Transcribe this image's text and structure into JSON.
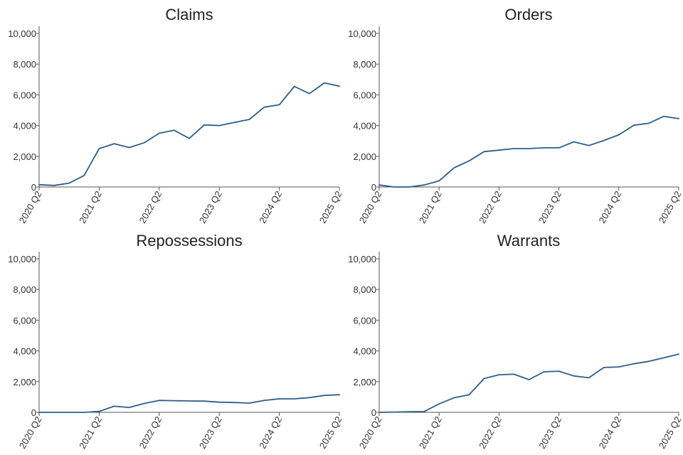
{
  "chart_data": [
    {
      "type": "line",
      "title": "Claims",
      "x": [
        "2020 Q2",
        "2020 Q3",
        "2020 Q4",
        "2021 Q1",
        "2021 Q2",
        "2021 Q3",
        "2021 Q4",
        "2022 Q1",
        "2022 Q2",
        "2022 Q3",
        "2022 Q4",
        "2023 Q1",
        "2023 Q2",
        "2023 Q3",
        "2023 Q4",
        "2024 Q1",
        "2024 Q2",
        "2024 Q3",
        "2024 Q4",
        "2025 Q1",
        "2025 Q2"
      ],
      "values": [
        150,
        100,
        250,
        750,
        2500,
        2820,
        2570,
        2880,
        3500,
        3690,
        3160,
        4040,
        4000,
        4200,
        4400,
        5200,
        5350,
        6550,
        6080,
        6780,
        6560
      ],
      "xticks": [
        "2020 Q2",
        "2021 Q2",
        "2022 Q2",
        "2023 Q2",
        "2024 Q2",
        "2025 Q2"
      ],
      "yticks": [
        "0",
        "2,000",
        "4,000",
        "6,000",
        "8,000",
        "10,000"
      ],
      "ylim": [
        0,
        10000
      ],
      "color": "#2f5d8a"
    },
    {
      "type": "line",
      "title": "Orders",
      "x": [
        "2020 Q2",
        "2020 Q3",
        "2020 Q4",
        "2021 Q1",
        "2021 Q2",
        "2021 Q3",
        "2021 Q4",
        "2022 Q1",
        "2022 Q2",
        "2022 Q3",
        "2022 Q4",
        "2023 Q1",
        "2023 Q2",
        "2023 Q3",
        "2023 Q4",
        "2024 Q1",
        "2024 Q2",
        "2024 Q3",
        "2024 Q4",
        "2025 Q1",
        "2025 Q2"
      ],
      "values": [
        130,
        0,
        0,
        130,
        400,
        1250,
        1700,
        2300,
        2400,
        2500,
        2500,
        2550,
        2550,
        2940,
        2700,
        3030,
        3400,
        4020,
        4150,
        4600,
        4450
      ],
      "xticks": [
        "2020 Q2",
        "2021 Q2",
        "2022 Q2",
        "2023 Q2",
        "2024 Q2",
        "2025 Q2"
      ],
      "yticks": [
        "0",
        "2,000",
        "4,000",
        "6,000",
        "8,000",
        "10,000"
      ],
      "ylim": [
        0,
        10000
      ],
      "color": "#2f5d8a"
    },
    {
      "type": "line",
      "title": "Repossessions",
      "x": [
        "2020 Q2",
        "2020 Q3",
        "2020 Q4",
        "2021 Q1",
        "2021 Q2",
        "2021 Q3",
        "2021 Q4",
        "2022 Q1",
        "2022 Q2",
        "2022 Q3",
        "2022 Q4",
        "2023 Q1",
        "2023 Q2",
        "2023 Q3",
        "2023 Q4",
        "2024 Q1",
        "2024 Q2",
        "2024 Q3",
        "2024 Q4",
        "2025 Q1",
        "2025 Q2"
      ],
      "values": [
        0,
        0,
        0,
        0,
        60,
        400,
        320,
        580,
        780,
        760,
        740,
        730,
        660,
        640,
        600,
        780,
        880,
        880,
        960,
        1100,
        1150
      ],
      "xticks": [
        "2020 Q2",
        "2021 Q2",
        "2022 Q2",
        "2023 Q2",
        "2024 Q2",
        "2025 Q2"
      ],
      "yticks": [
        "0",
        "2,000",
        "4,000",
        "6,000",
        "8,000",
        "10,000"
      ],
      "ylim": [
        0,
        10000
      ],
      "color": "#2f5d8a"
    },
    {
      "type": "line",
      "title": "Warrants",
      "x": [
        "2020 Q2",
        "2020 Q3",
        "2020 Q4",
        "2021 Q1",
        "2021 Q2",
        "2021 Q3",
        "2021 Q4",
        "2022 Q1",
        "2022 Q2",
        "2022 Q3",
        "2022 Q4",
        "2023 Q1",
        "2023 Q2",
        "2023 Q3",
        "2023 Q4",
        "2024 Q1",
        "2024 Q2",
        "2024 Q3",
        "2024 Q4",
        "2025 Q1",
        "2025 Q2"
      ],
      "values": [
        0,
        20,
        40,
        50,
        550,
        950,
        1150,
        2200,
        2450,
        2480,
        2130,
        2640,
        2680,
        2370,
        2250,
        2920,
        2960,
        3160,
        3320,
        3550,
        3790
      ],
      "xticks": [
        "2020 Q2",
        "2021 Q2",
        "2022 Q2",
        "2023 Q2",
        "2024 Q2",
        "2025 Q2"
      ],
      "yticks": [
        "0",
        "2,000",
        "4,000",
        "6,000",
        "8,000",
        "10,000"
      ],
      "ylim": [
        0,
        10000
      ],
      "color": "#2f5d8a"
    }
  ]
}
